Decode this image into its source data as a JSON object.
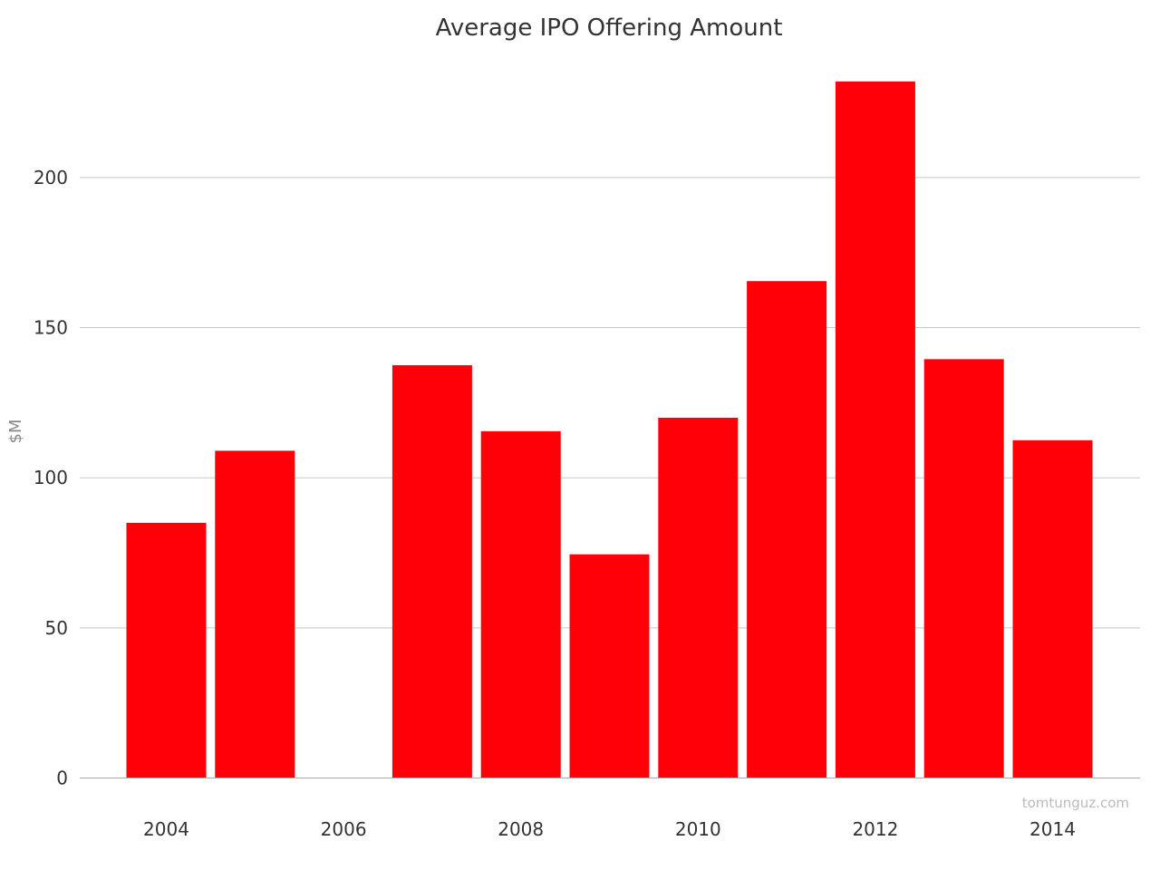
{
  "chart_data": {
    "type": "bar",
    "title": "Average IPO Offering Amount",
    "xlabel": "",
    "ylabel": "$M",
    "x": [
      2004,
      2005,
      2006,
      2007,
      2008,
      2009,
      2010,
      2011,
      2012,
      2013,
      2014
    ],
    "values": [
      85,
      109,
      0,
      137.5,
      115.5,
      74.5,
      120,
      165.5,
      232,
      139.5,
      112.5
    ],
    "x_ticks": [
      "2004",
      "2006",
      "2008",
      "2010",
      "2012",
      "2014"
    ],
    "y_ticks": [
      "0",
      "50",
      "100",
      "150",
      "200"
    ],
    "ylim": [
      0,
      240
    ],
    "grid": true,
    "legend": "none",
    "bar_color": "#ff0008",
    "credit": "tomtunguz.com"
  }
}
